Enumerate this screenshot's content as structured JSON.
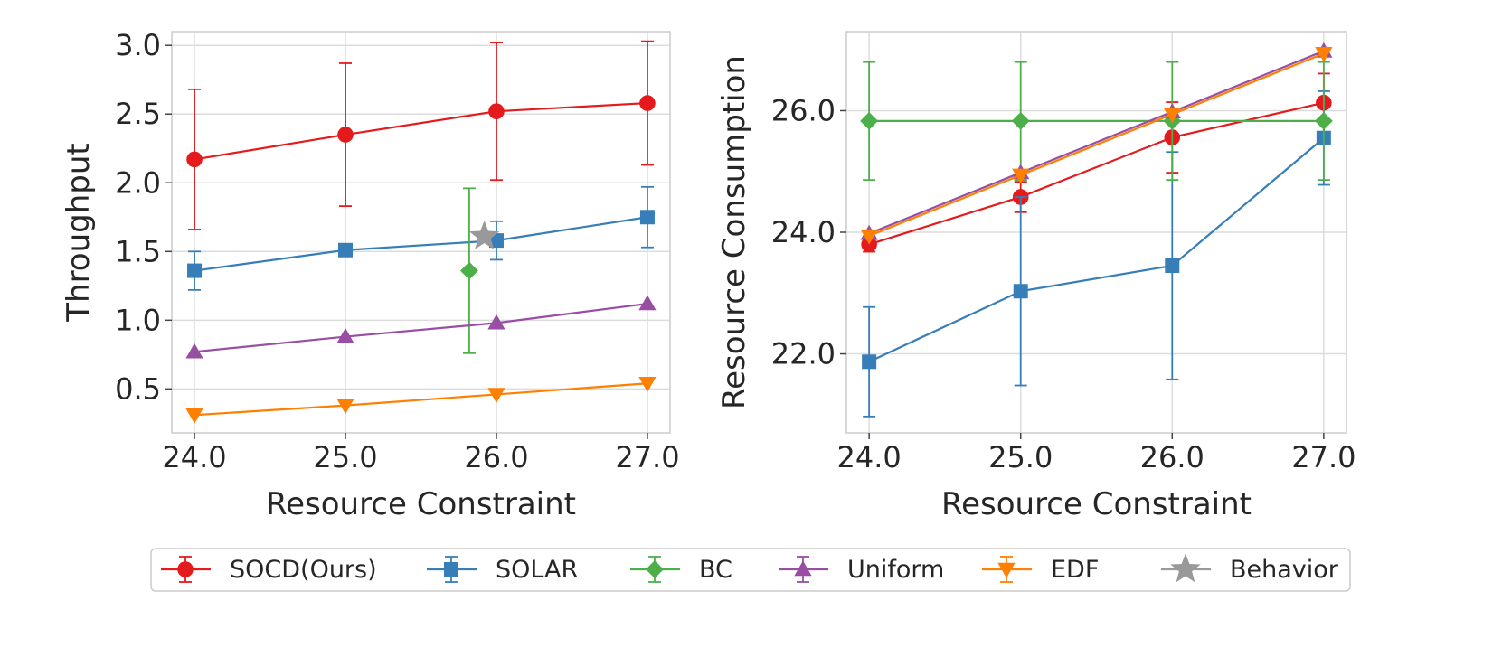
{
  "chart_data": [
    {
      "type": "line",
      "xlabel": "Resource Constraint",
      "ylabel": "Throughput",
      "x": [
        24.0,
        25.0,
        26.0,
        27.0
      ],
      "xlim": [
        23.85,
        27.15
      ],
      "ylim": [
        0.18,
        3.1
      ],
      "xticks": [
        "24.0",
        "25.0",
        "26.0",
        "27.0"
      ],
      "yticks": [
        {
          "value": 0.5,
          "label": "0.5"
        },
        {
          "value": 1.0,
          "label": "1.0"
        },
        {
          "value": 1.5,
          "label": "1.5"
        },
        {
          "value": 2.0,
          "label": "2.0"
        },
        {
          "value": 2.5,
          "label": "2.5"
        },
        {
          "value": 3.0,
          "label": "3.0"
        }
      ],
      "grid": true,
      "series": [
        {
          "name": "SOCD(Ours)",
          "color": "#e41a1c",
          "marker": "circle",
          "points": [
            {
              "x": 24.0,
              "y": 2.17,
              "err": 0.51
            },
            {
              "x": 25.0,
              "y": 2.35,
              "err": 0.52
            },
            {
              "x": 26.0,
              "y": 2.52,
              "err": 0.5
            },
            {
              "x": 27.0,
              "y": 2.58,
              "err": 0.45
            }
          ]
        },
        {
          "name": "SOLAR",
          "color": "#377eb8",
          "marker": "square",
          "points": [
            {
              "x": 24.0,
              "y": 1.36,
              "err": 0.14
            },
            {
              "x": 25.0,
              "y": 1.51,
              "err": 0
            },
            {
              "x": 26.0,
              "y": 1.58,
              "err": 0.14
            },
            {
              "x": 27.0,
              "y": 1.75,
              "err": 0.22
            }
          ]
        },
        {
          "name": "BC",
          "color": "#4daf4a",
          "marker": "diamond",
          "points": [
            {
              "x": 25.82,
              "y": 1.36,
              "err": 0.6
            }
          ]
        },
        {
          "name": "Uniform",
          "color": "#984ea3",
          "marker": "triangle-up",
          "points": [
            {
              "x": 24.0,
              "y": 0.77,
              "err": 0
            },
            {
              "x": 25.0,
              "y": 0.88,
              "err": 0
            },
            {
              "x": 26.0,
              "y": 0.98,
              "err": 0
            },
            {
              "x": 27.0,
              "y": 1.12,
              "err": 0
            }
          ]
        },
        {
          "name": "EDF",
          "color": "#ff7f00",
          "marker": "triangle-down",
          "points": [
            {
              "x": 24.0,
              "y": 0.31,
              "err": 0
            },
            {
              "x": 25.0,
              "y": 0.38,
              "err": 0
            },
            {
              "x": 26.0,
              "y": 0.46,
              "err": 0
            },
            {
              "x": 27.0,
              "y": 0.54,
              "err": 0
            }
          ]
        },
        {
          "name": "Behavior",
          "color": "#999999",
          "marker": "star",
          "points": [
            {
              "x": 25.92,
              "y": 1.61,
              "err": 0
            }
          ]
        }
      ]
    },
    {
      "type": "line",
      "xlabel": "Resource Constraint",
      "ylabel": "Resource Consumption",
      "x": [
        24.0,
        25.0,
        26.0,
        27.0
      ],
      "xlim": [
        23.85,
        27.15
      ],
      "ylim": [
        20.7,
        27.3
      ],
      "xticks": [
        "24.0",
        "25.0",
        "26.0",
        "27.0"
      ],
      "yticks": [
        {
          "value": 22.0,
          "label": "22.0"
        },
        {
          "value": 24.0,
          "label": "24.0"
        },
        {
          "value": 26.0,
          "label": "26.0"
        }
      ],
      "grid": true,
      "series": [
        {
          "name": "SOCD(Ours)",
          "color": "#e41a1c",
          "marker": "circle",
          "points": [
            {
              "x": 24.0,
              "y": 23.8,
              "err": 0.12
            },
            {
              "x": 25.0,
              "y": 24.58,
              "err": 0.25
            },
            {
              "x": 26.0,
              "y": 25.56,
              "err": 0.58
            },
            {
              "x": 27.0,
              "y": 26.13,
              "err": 0.48
            }
          ]
        },
        {
          "name": "SOLAR",
          "color": "#377eb8",
          "marker": "square",
          "points": [
            {
              "x": 24.0,
              "y": 21.87,
              "err": 0.9
            },
            {
              "x": 25.0,
              "y": 23.03,
              "err": 1.55
            },
            {
              "x": 26.0,
              "y": 23.45,
              "err": 1.87
            },
            {
              "x": 27.0,
              "y": 25.55,
              "err": 0.77
            }
          ]
        },
        {
          "name": "BC",
          "color": "#4daf4a",
          "marker": "diamond",
          "points": [
            {
              "x": 24.0,
              "y": 25.83,
              "err": 0.97
            },
            {
              "x": 25.0,
              "y": 25.83,
              "err": 0.97
            },
            {
              "x": 26.0,
              "y": 25.83,
              "err": 0.97
            },
            {
              "x": 27.0,
              "y": 25.83,
              "err": 0.97
            }
          ]
        },
        {
          "name": "Uniform",
          "color": "#984ea3",
          "marker": "triangle-up",
          "points": [
            {
              "x": 24.0,
              "y": 23.98,
              "err": 0
            },
            {
              "x": 25.0,
              "y": 24.98,
              "err": 0
            },
            {
              "x": 26.0,
              "y": 25.98,
              "err": 0
            },
            {
              "x": 27.0,
              "y": 26.98,
              "err": 0
            }
          ]
        },
        {
          "name": "EDF",
          "color": "#ff7f00",
          "marker": "triangle-down",
          "points": [
            {
              "x": 24.0,
              "y": 23.94,
              "err": 0
            },
            {
              "x": 25.0,
              "y": 24.94,
              "err": 0
            },
            {
              "x": 26.0,
              "y": 25.94,
              "err": 0
            },
            {
              "x": 27.0,
              "y": 26.94,
              "err": 0
            }
          ]
        }
      ]
    }
  ],
  "legend": {
    "placement": "bottom-center",
    "entries": [
      {
        "label": "SOCD(Ours)",
        "color": "#e41a1c",
        "marker": "circle",
        "errorbar": true
      },
      {
        "label": "SOLAR",
        "color": "#377eb8",
        "marker": "square",
        "errorbar": true
      },
      {
        "label": "BC",
        "color": "#4daf4a",
        "marker": "diamond",
        "errorbar": true
      },
      {
        "label": "Uniform",
        "color": "#984ea3",
        "marker": "triangle-up",
        "errorbar": true
      },
      {
        "label": "EDF",
        "color": "#ff7f00",
        "marker": "triangle-down",
        "errorbar": true
      },
      {
        "label": "Behavior",
        "color": "#999999",
        "marker": "star",
        "errorbar": false
      }
    ]
  }
}
